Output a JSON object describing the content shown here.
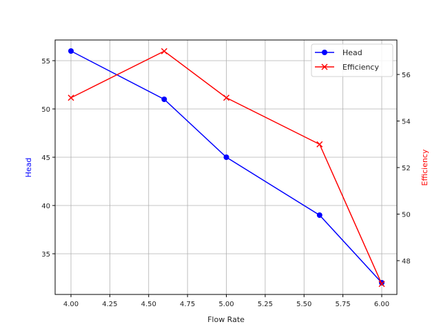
{
  "chart_data": {
    "type": "line",
    "title": "",
    "xlabel": "Flow Rate",
    "ylabel": "Head",
    "y2label": "Efficiency",
    "x": [
      4.0,
      4.6,
      5.0,
      5.6,
      6.0
    ],
    "series": [
      {
        "name": "Head",
        "axis": "left",
        "color": "#0000ff",
        "marker": "circle",
        "values": [
          56,
          51,
          45,
          39,
          32
        ]
      },
      {
        "name": "Efficiency",
        "axis": "right",
        "color": "#ff0000",
        "marker": "x",
        "values": [
          55,
          57,
          55,
          53,
          47
        ]
      }
    ],
    "xlim": [
      3.9,
      6.1
    ],
    "ylim": [
      31.2,
      56.8
    ],
    "y2lim": [
      46.5,
      57.5
    ],
    "xticks": [
      "4.00",
      "4.25",
      "4.50",
      "4.75",
      "5.00",
      "5.25",
      "5.50",
      "5.75",
      "6.00"
    ],
    "yticks": [
      "35",
      "40",
      "45",
      "50",
      "55"
    ],
    "y2ticks": [
      "48",
      "50",
      "52",
      "54",
      "56"
    ],
    "grid": true,
    "legend_position": "upper right"
  }
}
